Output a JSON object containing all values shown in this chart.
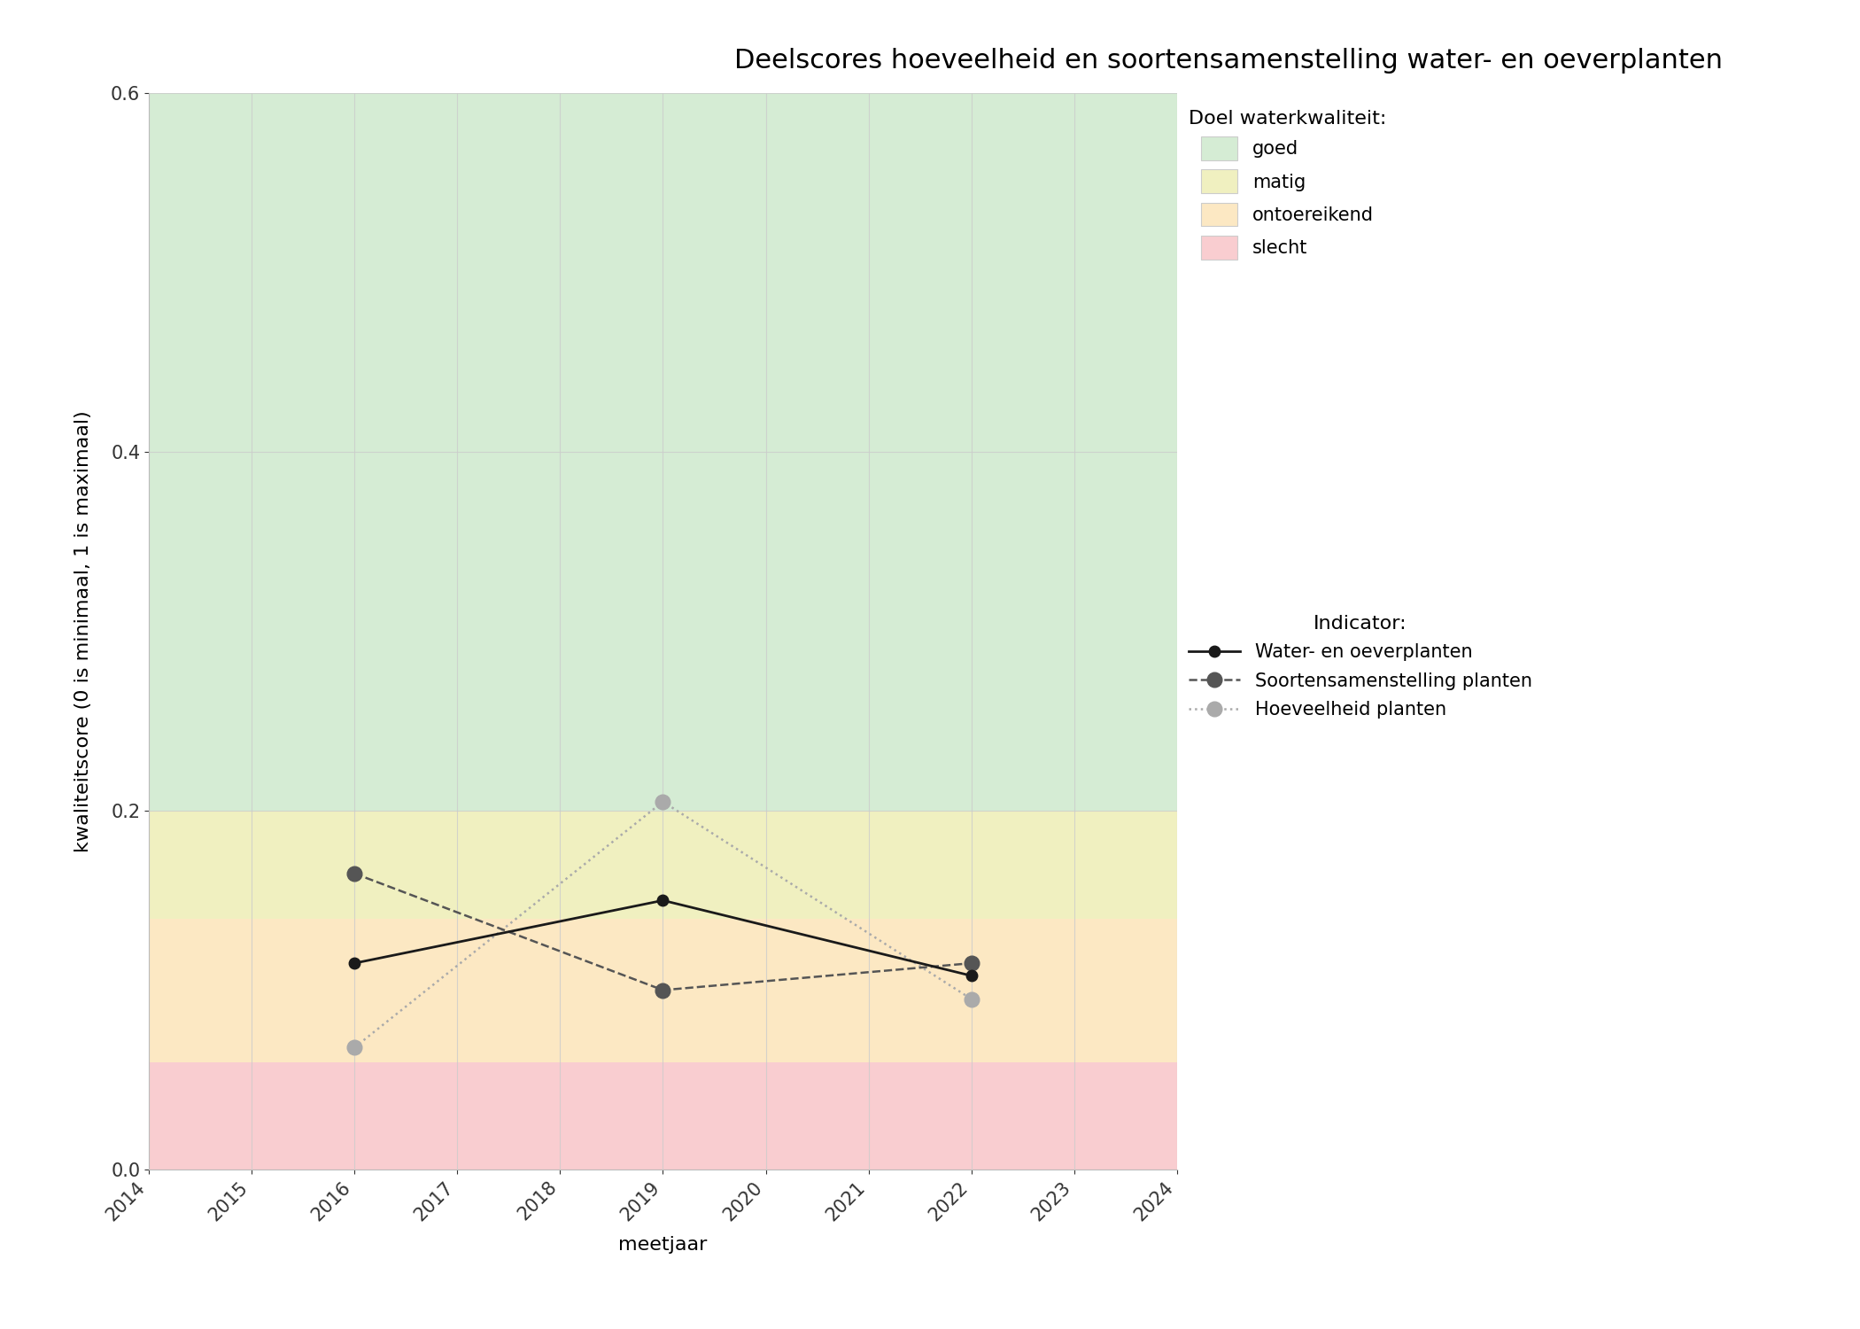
{
  "title": "Deelscores hoeveelheid en soortensamenstelling water- en oeverplanten",
  "xlabel": "meetjaar",
  "ylabel": "kwaliteitscore (0 is minimaal, 1 is maximaal)",
  "xlim": [
    2014,
    2024
  ],
  "ylim": [
    0.0,
    0.6
  ],
  "xticks": [
    2014,
    2015,
    2016,
    2017,
    2018,
    2019,
    2020,
    2021,
    2022,
    2023,
    2024
  ],
  "yticks": [
    0.0,
    0.2,
    0.4,
    0.6
  ],
  "bg_colors": {
    "goed": "#d5ecd4",
    "matig": "#f0f0c0",
    "ontoereikend": "#fce8c3",
    "slecht": "#f9cdd0"
  },
  "bg_thresholds": {
    "slecht_max": 0.06,
    "ontoereikend_max": 0.14,
    "matig_max": 0.2,
    "goed_max": 0.6
  },
  "water_oeverplanten": {
    "years": [
      2016,
      2019,
      2022
    ],
    "values": [
      0.115,
      0.15,
      0.108
    ],
    "color": "#1a1a1a",
    "linestyle": "-",
    "marker": "o",
    "markersize": 9,
    "linewidth": 2.0,
    "label": "Water- en oeverplanten"
  },
  "soortensamenstelling": {
    "years": [
      2016,
      2019,
      2022
    ],
    "values": [
      0.165,
      0.1,
      0.115
    ],
    "color": "#555555",
    "linestyle": "--",
    "marker": "o",
    "markersize": 12,
    "linewidth": 1.8,
    "label": "Soortensamenstelling planten"
  },
  "hoeveelheid": {
    "years": [
      2016,
      2019,
      2022
    ],
    "values": [
      0.068,
      0.205,
      0.095
    ],
    "color": "#aaaaaa",
    "linestyle": ":",
    "marker": "o",
    "markersize": 12,
    "linewidth": 1.8,
    "label": "Hoeveelheid planten"
  },
  "legend_quality_title": "Doel waterkwaliteit:",
  "legend_indicator_title": "Indicator:",
  "figsize": [
    21.0,
    15.0
  ],
  "dpi": 100,
  "background_color": "#ffffff",
  "grid_color": "#cccccc",
  "grid_alpha": 0.8,
  "title_fontsize": 22,
  "axis_label_fontsize": 16,
  "tick_fontsize": 15,
  "legend_fontsize": 15,
  "legend_title_fontsize": 16
}
